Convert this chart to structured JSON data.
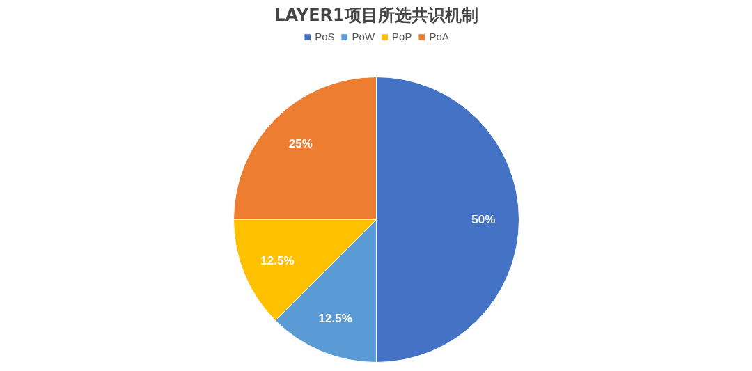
{
  "chart_data": {
    "type": "pie",
    "title": "LAYER1项目所选共识机制",
    "categories": [
      "PoS",
      "PoW",
      "PoP",
      "PoA"
    ],
    "values": [
      50,
      12.5,
      12.5,
      25
    ],
    "colors": [
      "#4472c4",
      "#5b9bd5",
      "#ffc000",
      "#ed7d31"
    ],
    "value_labels": [
      "50%",
      "12.5%",
      "12.5%",
      "25%"
    ],
    "legend": "top"
  }
}
